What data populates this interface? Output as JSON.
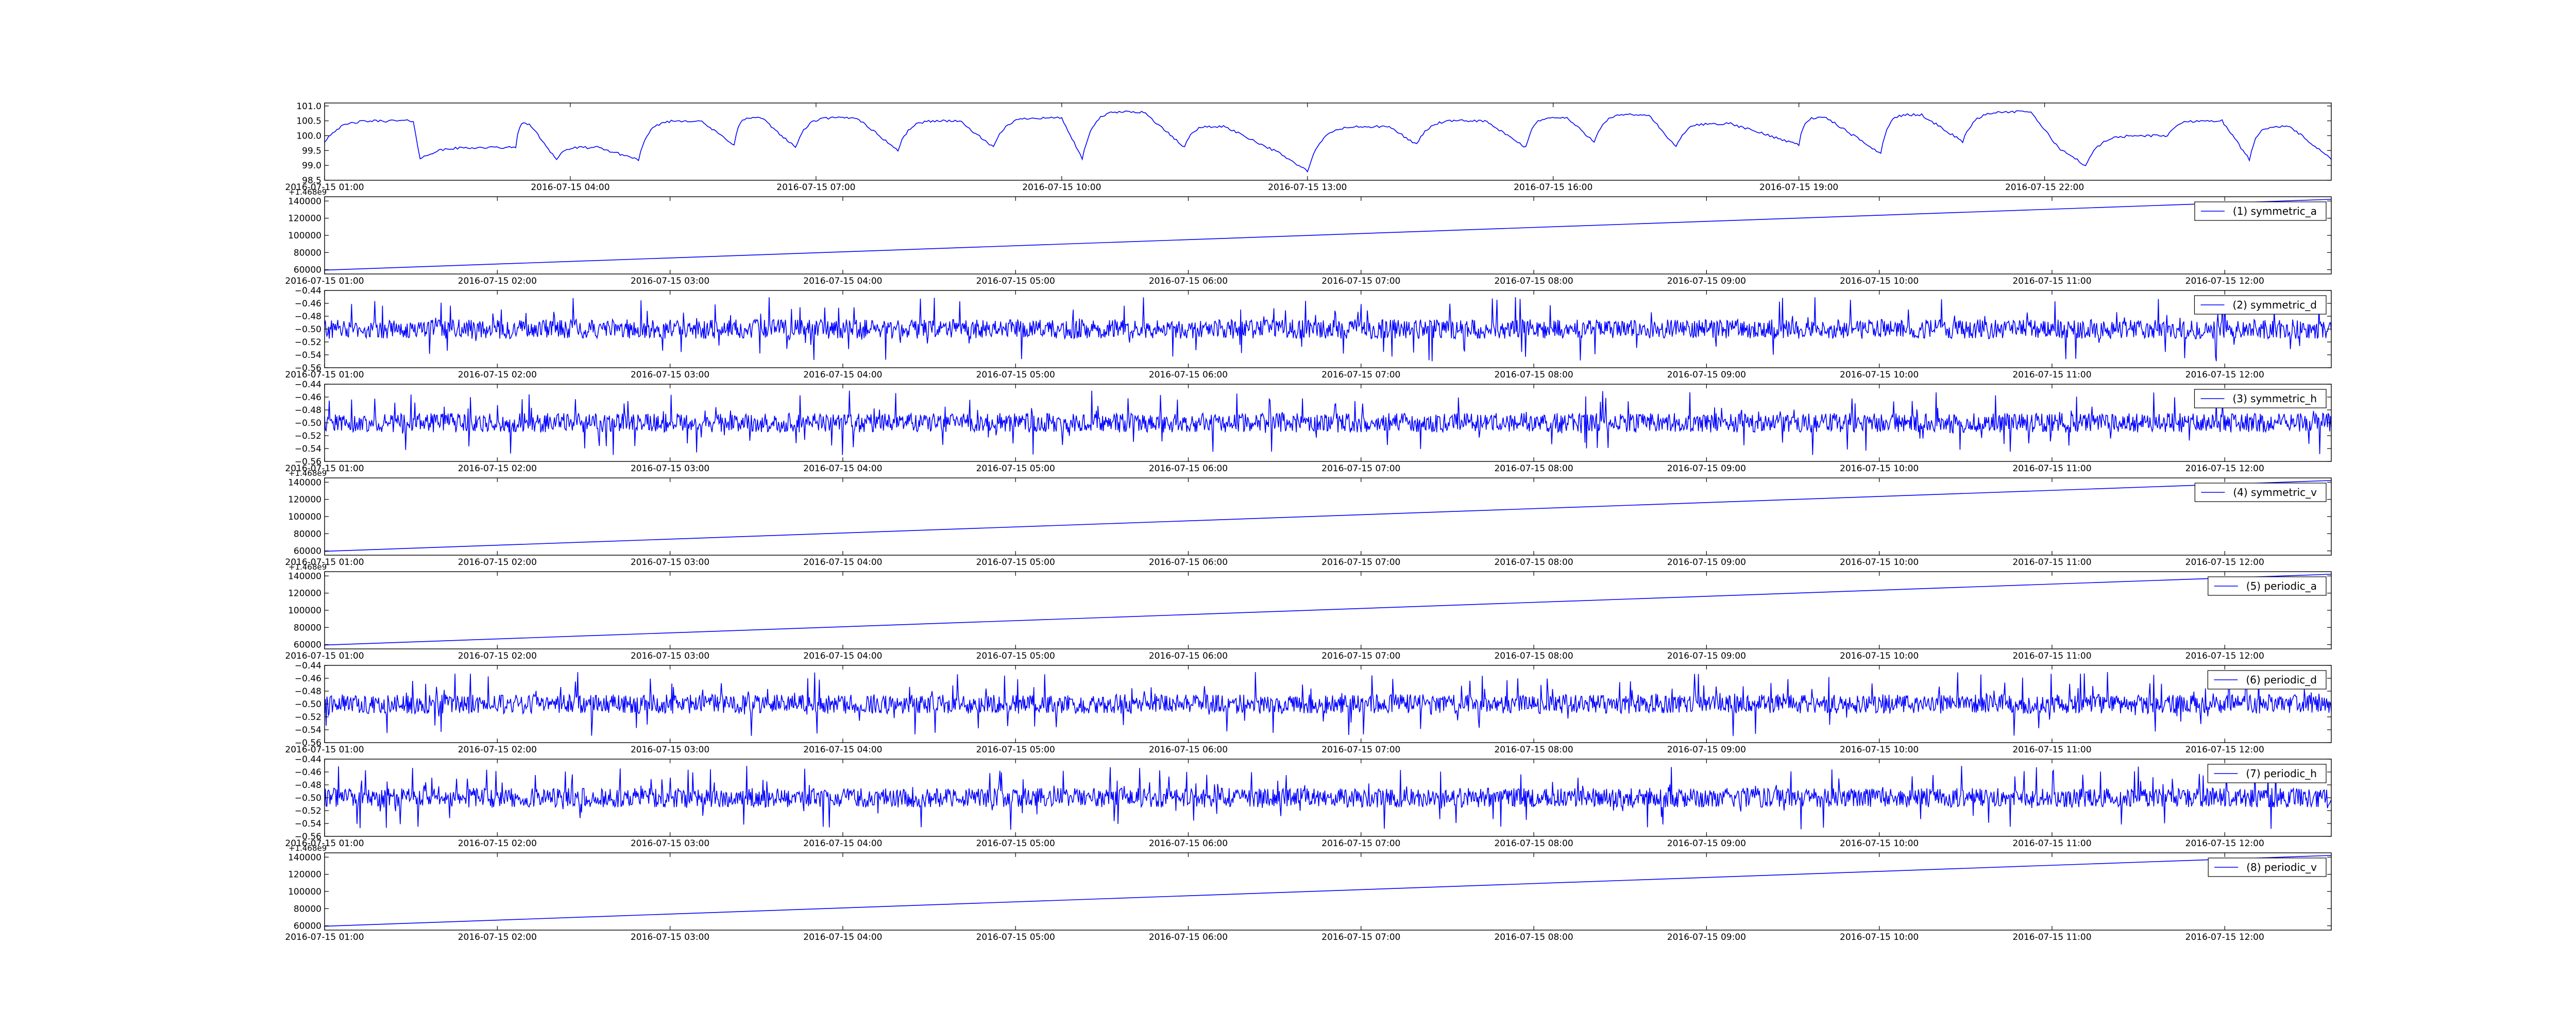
{
  "figure": {
    "line_color": "#0000ff",
    "axes_color": "#000000",
    "background": "#ffffff"
  },
  "chart_data": [
    {
      "type": "line",
      "legend": "",
      "ylim": [
        98.5,
        101.1
      ],
      "yticks": [
        "98.5",
        "99.0",
        "99.5",
        "100.0",
        "100.5",
        "101.0"
      ],
      "xlim": [
        "2016-07-15 01:00",
        "2016-07-16 01:30"
      ],
      "xticks": [
        "2016-07-15 01:00",
        "2016-07-15 04:00",
        "2016-07-15 07:00",
        "2016-07-15 10:00",
        "2016-07-15 13:00",
        "2016-07-15 16:00",
        "2016-07-15 19:00",
        "2016-07-15 22:00"
      ],
      "y_offset_text": "",
      "trend": "sawtooth",
      "x": [
        "2016-07-15 01:00",
        "2016-07-15 02:05",
        "2016-07-15 02:10",
        "2016-07-15 03:20",
        "2016-07-15 03:30",
        "2016-07-15 03:50",
        "2016-07-15 04:20",
        "2016-07-15 04:50",
        "2016-07-15 05:35",
        "2016-07-15 06:00",
        "2016-07-15 06:20",
        "2016-07-15 06:45",
        "2016-07-15 07:30",
        "2016-07-15 08:00",
        "2016-07-15 08:45",
        "2016-07-15 09:10",
        "2016-07-15 10:00",
        "2016-07-15 10:15",
        "2016-07-15 11:00",
        "2016-07-15 11:30",
        "2016-07-15 12:00",
        "2016-07-15 12:40",
        "2016-07-15 13:00",
        "2016-07-15 14:00",
        "2016-07-15 14:20",
        "2016-07-15 15:10",
        "2016-07-15 15:40",
        "2016-07-15 16:10",
        "2016-07-15 16:30",
        "2016-07-15 17:10",
        "2016-07-15 17:30",
        "2016-07-15 18:10",
        "2016-07-15 19:00",
        "2016-07-15 19:20",
        "2016-07-15 20:00",
        "2016-07-15 20:30",
        "2016-07-15 21:00",
        "2016-07-15 21:50",
        "2016-07-15 22:10",
        "2016-07-15 22:30",
        "2016-07-15 23:30",
        "2016-07-16 00:10",
        "2016-07-16 00:30",
        "2016-07-16 01:00",
        "2016-07-16 01:30"
      ],
      "y": [
        99.8,
        100.5,
        99.2,
        99.6,
        100.4,
        99.2,
        99.6,
        99.2,
        100.5,
        99.7,
        100.6,
        99.6,
        100.6,
        99.5,
        100.5,
        99.6,
        100.6,
        99.2,
        100.8,
        99.6,
        100.3,
        99.4,
        98.8,
        100.3,
        99.7,
        100.5,
        99.6,
        100.6,
        99.8,
        100.7,
        99.6,
        100.4,
        99.7,
        100.6,
        99.4,
        100.7,
        99.8,
        100.8,
        99.6,
        99.0,
        100.0,
        100.5,
        99.2,
        100.3,
        99.2
      ]
    },
    {
      "type": "line",
      "legend": "(1) symmetric_a",
      "ylim": [
        55000,
        145000
      ],
      "yticks": [
        "60000",
        "80000",
        "100000",
        "120000",
        "140000"
      ],
      "xlim": [
        "2016-07-15 01:00",
        "2016-07-15 12:37"
      ],
      "xticks": [
        "2016-07-15 01:00",
        "2016-07-15 02:00",
        "2016-07-15 03:00",
        "2016-07-15 04:00",
        "2016-07-15 05:00",
        "2016-07-15 06:00",
        "2016-07-15 07:00",
        "2016-07-15 08:00",
        "2016-07-15 09:00",
        "2016-07-15 10:00",
        "2016-07-15 11:00",
        "2016-07-15 12:00"
      ],
      "y_offset_text": "+1.468e9",
      "trend": "linear",
      "x": [
        "2016-07-15 01:00",
        "2016-07-15 12:37"
      ],
      "y": [
        59500,
        142000
      ]
    },
    {
      "type": "line",
      "legend": "(2) symmetric_d",
      "ylim": [
        -0.56,
        -0.44
      ],
      "yticks": [
        "−0.56",
        "−0.54",
        "−0.52",
        "−0.50",
        "−0.48",
        "−0.46",
        "−0.44"
      ],
      "xlim": [
        "2016-07-15 01:00",
        "2016-07-15 12:37"
      ],
      "xticks": [
        "2016-07-15 01:00",
        "2016-07-15 02:00",
        "2016-07-15 03:00",
        "2016-07-15 04:00",
        "2016-07-15 05:00",
        "2016-07-15 06:00",
        "2016-07-15 07:00",
        "2016-07-15 08:00",
        "2016-07-15 09:00",
        "2016-07-15 10:00",
        "2016-07-15 11:00",
        "2016-07-15 12:00"
      ],
      "y_offset_text": "",
      "trend": "noise",
      "center": -0.5,
      "spread": 0.015,
      "spike_max": -0.45,
      "spike_min": -0.55
    },
    {
      "type": "line",
      "legend": "(3) symmetric_h",
      "ylim": [
        -0.56,
        -0.44
      ],
      "yticks": [
        "−0.56",
        "−0.54",
        "−0.52",
        "−0.50",
        "−0.48",
        "−0.46",
        "−0.44"
      ],
      "xlim": [
        "2016-07-15 01:00",
        "2016-07-15 12:37"
      ],
      "xticks": [
        "2016-07-15 01:00",
        "2016-07-15 02:00",
        "2016-07-15 03:00",
        "2016-07-15 04:00",
        "2016-07-15 05:00",
        "2016-07-15 06:00",
        "2016-07-15 07:00",
        "2016-07-15 08:00",
        "2016-07-15 09:00",
        "2016-07-15 10:00",
        "2016-07-15 11:00",
        "2016-07-15 12:00"
      ],
      "y_offset_text": "",
      "trend": "noise",
      "center": -0.5,
      "spread": 0.015,
      "spike_max": -0.45,
      "spike_min": -0.55
    },
    {
      "type": "line",
      "legend": "(4) symmetric_v",
      "ylim": [
        55000,
        145000
      ],
      "yticks": [
        "60000",
        "80000",
        "100000",
        "120000",
        "140000"
      ],
      "xlim": [
        "2016-07-15 01:00",
        "2016-07-15 12:37"
      ],
      "xticks": [
        "2016-07-15 01:00",
        "2016-07-15 02:00",
        "2016-07-15 03:00",
        "2016-07-15 04:00",
        "2016-07-15 05:00",
        "2016-07-15 06:00",
        "2016-07-15 07:00",
        "2016-07-15 08:00",
        "2016-07-15 09:00",
        "2016-07-15 10:00",
        "2016-07-15 11:00",
        "2016-07-15 12:00"
      ],
      "y_offset_text": "+1.468e9",
      "trend": "linear",
      "x": [
        "2016-07-15 01:00",
        "2016-07-15 12:37"
      ],
      "y": [
        59500,
        142000
      ]
    },
    {
      "type": "line",
      "legend": "(5) periodic_a",
      "ylim": [
        55000,
        145000
      ],
      "yticks": [
        "60000",
        "80000",
        "100000",
        "120000",
        "140000"
      ],
      "xlim": [
        "2016-07-15 01:00",
        "2016-07-15 12:37"
      ],
      "xticks": [
        "2016-07-15 01:00",
        "2016-07-15 02:00",
        "2016-07-15 03:00",
        "2016-07-15 04:00",
        "2016-07-15 05:00",
        "2016-07-15 06:00",
        "2016-07-15 07:00",
        "2016-07-15 08:00",
        "2016-07-15 09:00",
        "2016-07-15 10:00",
        "2016-07-15 11:00",
        "2016-07-15 12:00"
      ],
      "y_offset_text": "+1.468e9",
      "trend": "linear",
      "x": [
        "2016-07-15 01:00",
        "2016-07-15 12:37"
      ],
      "y": [
        59500,
        142000
      ]
    },
    {
      "type": "line",
      "legend": "(6) periodic_d",
      "ylim": [
        -0.56,
        -0.44
      ],
      "yticks": [
        "−0.56",
        "−0.54",
        "−0.52",
        "−0.50",
        "−0.48",
        "−0.46",
        "−0.44"
      ],
      "xlim": [
        "2016-07-15 01:00",
        "2016-07-15 12:37"
      ],
      "xticks": [
        "2016-07-15 01:00",
        "2016-07-15 02:00",
        "2016-07-15 03:00",
        "2016-07-15 04:00",
        "2016-07-15 05:00",
        "2016-07-15 06:00",
        "2016-07-15 07:00",
        "2016-07-15 08:00",
        "2016-07-15 09:00",
        "2016-07-15 10:00",
        "2016-07-15 11:00",
        "2016-07-15 12:00"
      ],
      "y_offset_text": "",
      "trend": "noise",
      "center": -0.5,
      "spread": 0.015,
      "spike_max": -0.45,
      "spike_min": -0.55
    },
    {
      "type": "line",
      "legend": "(7) periodic_h",
      "ylim": [
        -0.56,
        -0.44
      ],
      "yticks": [
        "−0.56",
        "−0.54",
        "−0.52",
        "−0.50",
        "−0.48",
        "−0.46",
        "−0.44"
      ],
      "xlim": [
        "2016-07-15 01:00",
        "2016-07-15 12:37"
      ],
      "xticks": [
        "2016-07-15 01:00",
        "2016-07-15 02:00",
        "2016-07-15 03:00",
        "2016-07-15 04:00",
        "2016-07-15 05:00",
        "2016-07-15 06:00",
        "2016-07-15 07:00",
        "2016-07-15 08:00",
        "2016-07-15 09:00",
        "2016-07-15 10:00",
        "2016-07-15 11:00",
        "2016-07-15 12:00"
      ],
      "y_offset_text": "",
      "trend": "noise",
      "center": -0.5,
      "spread": 0.015,
      "spike_max": -0.45,
      "spike_min": -0.55
    },
    {
      "type": "line",
      "legend": "(8) periodic_v",
      "ylim": [
        55000,
        145000
      ],
      "yticks": [
        "60000",
        "80000",
        "100000",
        "120000",
        "140000"
      ],
      "xlim": [
        "2016-07-15 01:00",
        "2016-07-15 12:37"
      ],
      "xticks": [
        "2016-07-15 01:00",
        "2016-07-15 02:00",
        "2016-07-15 03:00",
        "2016-07-15 04:00",
        "2016-07-15 05:00",
        "2016-07-15 06:00",
        "2016-07-15 07:00",
        "2016-07-15 08:00",
        "2016-07-15 09:00",
        "2016-07-15 10:00",
        "2016-07-15 11:00",
        "2016-07-15 12:00"
      ],
      "y_offset_text": "+1.468e9",
      "trend": "linear",
      "x": [
        "2016-07-15 01:00",
        "2016-07-15 12:37"
      ],
      "y": [
        59500,
        142000
      ]
    }
  ]
}
